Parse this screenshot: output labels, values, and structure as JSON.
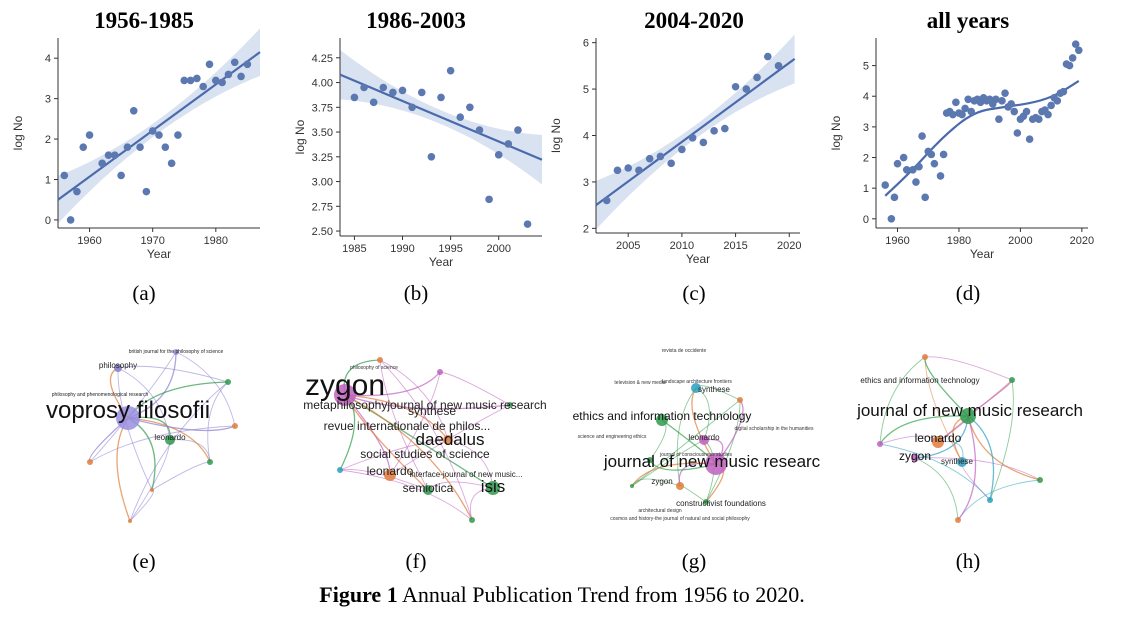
{
  "chart_data": [
    {
      "type": "scatter",
      "title": "1956-1985",
      "panel_label": "(a)",
      "xlabel": "Year",
      "ylabel": "log No",
      "xlim": [
        1955,
        1987
      ],
      "ylim": [
        -0.2,
        4.5
      ],
      "xticks": [
        1960,
        1970,
        1980
      ],
      "yticks": [
        0,
        1,
        2,
        3,
        4
      ],
      "x": [
        1956,
        1957,
        1958,
        1959,
        1960,
        1962,
        1963,
        1964,
        1965,
        1966,
        1967,
        1968,
        1969,
        1970,
        1971,
        1972,
        1973,
        1974,
        1975,
        1976,
        1977,
        1978,
        1979,
        1980,
        1981,
        1982,
        1983,
        1984,
        1985
      ],
      "y": [
        1.1,
        0,
        0.7,
        1.8,
        2.1,
        1.4,
        1.6,
        1.6,
        1.1,
        1.8,
        2.7,
        1.8,
        0.7,
        2.2,
        2.1,
        1.8,
        1.4,
        2.1,
        3.45,
        3.45,
        3.5,
        3.3,
        3.85,
        3.45,
        3.4,
        3.6,
        3.9,
        3.55,
        3.85
      ],
      "fit": [
        [
          1955,
          0.5
        ],
        [
          1987,
          4.15
        ]
      ],
      "ci": true
    },
    {
      "type": "scatter",
      "title": "1986-2003",
      "panel_label": "(b)",
      "xlabel": "Year",
      "ylabel": "log No",
      "xlim": [
        1983.5,
        2004.5
      ],
      "ylim": [
        2.45,
        4.45
      ],
      "xticks": [
        1985,
        1990,
        1995,
        2000
      ],
      "yticks": [
        2.5,
        2.75,
        3.0,
        3.25,
        3.5,
        3.75,
        4.0,
        4.25
      ],
      "ytick_labels": [
        "2.50",
        "2.75",
        "3.00",
        "3.25",
        "3.50",
        "3.75",
        "4.00",
        "4.25"
      ],
      "x": [
        1985,
        1986,
        1987,
        1988,
        1989,
        1990,
        1991,
        1992,
        1993,
        1994,
        1995,
        1996,
        1997,
        1998,
        1999,
        2000,
        2001,
        2002,
        2003
      ],
      "y": [
        3.85,
        3.95,
        3.8,
        3.95,
        3.9,
        3.92,
        3.75,
        3.9,
        3.25,
        3.85,
        4.12,
        3.65,
        3.75,
        3.52,
        2.82,
        3.27,
        3.38,
        3.52,
        2.57
      ],
      "fit": [
        [
          1983.5,
          4.08
        ],
        [
          2004.5,
          3.22
        ]
      ],
      "ci": true
    },
    {
      "type": "scatter",
      "title": "2004-2020",
      "panel_label": "(c)",
      "xlabel": "Year",
      "ylabel": "log No",
      "xlim": [
        2002,
        2021
      ],
      "ylim": [
        1.9,
        6.1
      ],
      "xticks": [
        2005,
        2010,
        2015,
        2020
      ],
      "yticks": [
        2,
        3,
        4,
        5,
        6
      ],
      "x": [
        2003,
        2004,
        2005,
        2006,
        2007,
        2008,
        2009,
        2010,
        2011,
        2012,
        2013,
        2014,
        2015,
        2016,
        2017,
        2018,
        2019
      ],
      "y": [
        2.6,
        3.25,
        3.3,
        3.25,
        3.5,
        3.55,
        3.4,
        3.7,
        3.95,
        3.85,
        4.1,
        4.15,
        5.05,
        5.0,
        5.25,
        5.7,
        5.5
      ],
      "fit": [
        [
          2002,
          2.5
        ],
        [
          2020.5,
          5.65
        ]
      ],
      "ci": true
    },
    {
      "type": "scatter",
      "title": "all years",
      "panel_label": "(d)",
      "xlabel": "Year",
      "ylabel": "log No",
      "xlim": [
        1953,
        2022
      ],
      "ylim": [
        -0.3,
        5.9
      ],
      "xticks": [
        1960,
        1980,
        2000,
        2020
      ],
      "yticks": [
        0,
        1,
        2,
        3,
        4,
        5
      ],
      "x": [
        1956,
        1958,
        1959,
        1960,
        1962,
        1963,
        1965,
        1966,
        1967,
        1968,
        1969,
        1970,
        1971,
        1972,
        1974,
        1975,
        1976,
        1977,
        1978,
        1979,
        1980,
        1981,
        1982,
        1983,
        1984,
        1985,
        1986,
        1987,
        1988,
        1989,
        1990,
        1991,
        1992,
        1993,
        1994,
        1995,
        1996,
        1997,
        1998,
        1999,
        2000,
        2001,
        2002,
        2003,
        2004,
        2005,
        2006,
        2007,
        2008,
        2009,
        2010,
        2011,
        2012,
        2013,
        2014,
        2015,
        2016,
        2017,
        2018,
        2019
      ],
      "y": [
        1.1,
        0,
        0.7,
        1.8,
        2.0,
        1.6,
        1.6,
        1.2,
        1.7,
        2.7,
        0.7,
        2.2,
        2.1,
        1.8,
        1.4,
        2.1,
        3.45,
        3.5,
        3.4,
        3.8,
        3.45,
        3.4,
        3.6,
        3.9,
        3.5,
        3.85,
        3.9,
        3.8,
        3.95,
        3.85,
        3.9,
        3.75,
        3.9,
        3.25,
        3.85,
        4.1,
        3.65,
        3.75,
        3.5,
        2.8,
        3.25,
        3.35,
        3.5,
        2.6,
        3.25,
        3.3,
        3.25,
        3.5,
        3.55,
        3.4,
        3.7,
        3.95,
        3.85,
        4.1,
        4.15,
        5.05,
        5.0,
        5.25,
        5.7,
        5.5
      ],
      "trend": [
        [
          1956,
          0.75
        ],
        [
          1965,
          1.6
        ],
        [
          1975,
          2.7
        ],
        [
          1985,
          3.5
        ],
        [
          1995,
          3.65
        ],
        [
          2005,
          3.8
        ],
        [
          2012,
          4.05
        ],
        [
          2019,
          4.5
        ]
      ],
      "ci": false
    },
    {
      "type": "network",
      "panel_label": "(e)",
      "labels": [
        {
          "text": "british journal for the philosophy of science",
          "size": "tiny",
          "color": "#222222"
        },
        {
          "text": "philosophy",
          "size": "small",
          "color": "#222222"
        },
        {
          "text": "philosophy and phenomenological research",
          "size": "tiny",
          "color": "#222222"
        },
        {
          "text": "voprosy filosofii",
          "size": "xlarge",
          "color": "#111111"
        },
        {
          "text": "leonardo",
          "size": "small",
          "color": "#222222"
        }
      ]
    },
    {
      "type": "network",
      "panel_label": "(f)",
      "labels": [
        {
          "text": "zygon",
          "size": "xxlarge",
          "color": "#111111"
        },
        {
          "text": "metaphilosophyjournal of new music research",
          "size": "medium",
          "color": "#222222"
        },
        {
          "text": "synthese",
          "size": "medium",
          "color": "#222222"
        },
        {
          "text": "revue internationale de philos...",
          "size": "medium",
          "color": "#222222"
        },
        {
          "text": "daedalus",
          "size": "large",
          "color": "#111111"
        },
        {
          "text": "social studies of science",
          "size": "medium",
          "color": "#222222"
        },
        {
          "text": "leonardo",
          "size": "medium",
          "color": "#222222"
        },
        {
          "text": "interface-journal of new music...",
          "size": "small",
          "color": "#222222"
        },
        {
          "text": "isis",
          "size": "large",
          "color": "#111111"
        },
        {
          "text": "semiotica",
          "size": "medium",
          "color": "#222222"
        },
        {
          "text": "philosophy of science",
          "size": "tiny",
          "color": "#333333"
        }
      ]
    },
    {
      "type": "network",
      "panel_label": "(g)",
      "labels": [
        {
          "text": "revista de occidente",
          "size": "tiny",
          "color": "#333333"
        },
        {
          "text": "television & new media",
          "size": "tiny",
          "color": "#333333"
        },
        {
          "text": "landscape architecture frontiers",
          "size": "tiny",
          "color": "#333333"
        },
        {
          "text": "synthese",
          "size": "small",
          "color": "#222222"
        },
        {
          "text": "ethics and information technology",
          "size": "medium",
          "color": "#111111"
        },
        {
          "text": "science and engineering ethics",
          "size": "tiny",
          "color": "#333333"
        },
        {
          "text": "leonardo",
          "size": "small",
          "color": "#222222"
        },
        {
          "text": "journal of consciousness studies",
          "size": "tiny",
          "color": "#333333"
        },
        {
          "text": "journal of new music researc",
          "size": "large",
          "color": "#111111"
        },
        {
          "text": "zygon",
          "size": "small",
          "color": "#222222"
        },
        {
          "text": "constructivist foundations",
          "size": "small",
          "color": "#222222"
        },
        {
          "text": "architectural design",
          "size": "tiny",
          "color": "#333333"
        },
        {
          "text": "cosmos and history-the journal of natural and social philosophy",
          "size": "tiny",
          "color": "#333333"
        },
        {
          "text": "digital scholarship in the humanities",
          "size": "tiny",
          "color": "#333333"
        }
      ]
    },
    {
      "type": "network",
      "panel_label": "(h)",
      "labels": [
        {
          "text": "ethics and information technology",
          "size": "small",
          "color": "#222222"
        },
        {
          "text": "journal of new music research",
          "size": "large",
          "color": "#111111"
        },
        {
          "text": "leonardo",
          "size": "medium",
          "color": "#111111"
        },
        {
          "text": "zygon",
          "size": "medium",
          "color": "#111111"
        },
        {
          "text": "synthese",
          "size": "small",
          "color": "#222222"
        }
      ]
    }
  ],
  "caption": {
    "prefix": "Figure 1",
    "text": " Annual Publication Trend from 1956 to 2020."
  },
  "colors": {
    "point": "#5b78b0",
    "line": "#4a6aad",
    "band": "#c9d5ea",
    "axis": "#333333"
  }
}
